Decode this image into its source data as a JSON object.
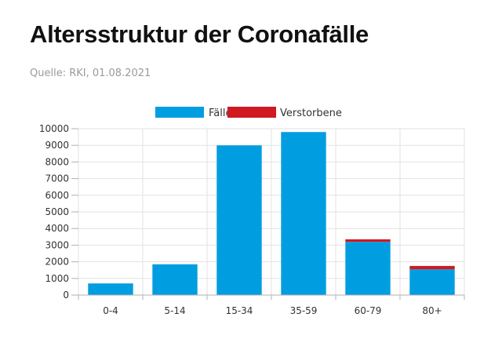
{
  "header": {
    "title": "Altersstruktur der Coronafälle",
    "source": "Quelle: RKI, 01.08.2021"
  },
  "colors": {
    "cases": "#009ee0",
    "deaths": "#cf1a21",
    "grid": "#e2e2e2",
    "axis": "#b0b0b0",
    "tick_text": "#333333"
  },
  "chart_data": {
    "type": "bar",
    "stacked": true,
    "categories": [
      "0-4",
      "5-14",
      "15-34",
      "35-59",
      "60-79",
      "80+"
    ],
    "series": [
      {
        "name": "Fälle",
        "values": [
          700,
          1850,
          9000,
          9800,
          3200,
          1550
        ]
      },
      {
        "name": "Verstorbene",
        "values": [
          0,
          0,
          0,
          0,
          150,
          200
        ]
      }
    ],
    "ylim": [
      0,
      10000
    ],
    "yticks": [
      0,
      1000,
      2000,
      3000,
      4000,
      5000,
      6000,
      7000,
      8000,
      9000,
      10000
    ],
    "legend_position": "top-center",
    "grid": true
  }
}
